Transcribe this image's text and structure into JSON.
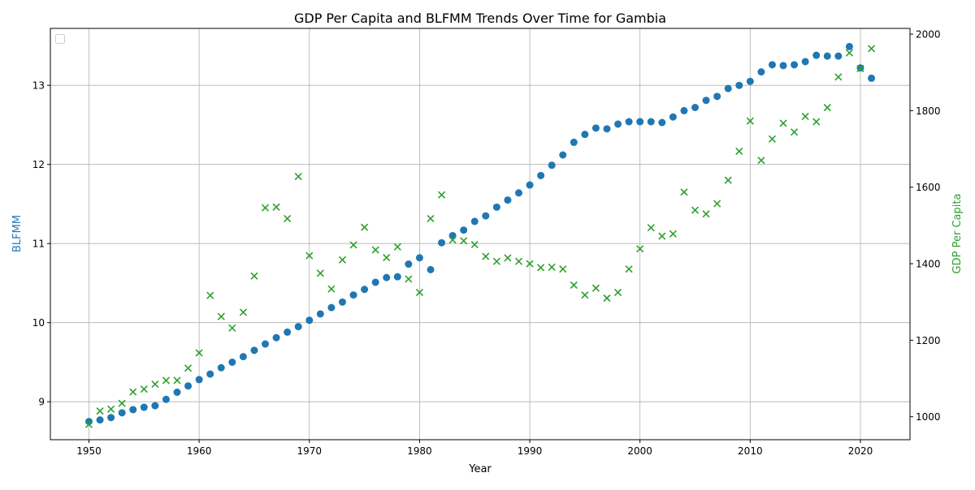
{
  "chart_data": {
    "type": "scatter",
    "title": "GDP Per Capita and BLFMM Trends Over Time for Gambia",
    "xlabel": "Year",
    "ylabel_left": "BLFMM",
    "ylabel_right": "GDP Per Capita",
    "x_ticks": [
      1950,
      1960,
      1970,
      1980,
      1990,
      2000,
      2010,
      2020
    ],
    "y_left_ticks": [
      9,
      10,
      11,
      12,
      13
    ],
    "y_right_ticks": [
      1000,
      1200,
      1400,
      1600,
      1800,
      2000
    ],
    "xlim": [
      1946.5,
      2024.5
    ],
    "ylim_left": [
      8.52,
      13.72
    ],
    "ylim_right": [
      940,
      2015
    ],
    "grid": true,
    "legend": "top-left (empty)",
    "colors": {
      "blfmm": "#1f77b4",
      "gdp": "#2ca02c",
      "grid": "#b0b0b0",
      "axis": "#000000"
    },
    "series": [
      {
        "marker": "circle",
        "axis": "left",
        "x": [
          1950,
          1951,
          1952,
          1953,
          1954,
          1955,
          1956,
          1957,
          1958,
          1959,
          1960,
          1961,
          1962,
          1963,
          1964,
          1965,
          1966,
          1967,
          1968,
          1969,
          1970,
          1971,
          1972,
          1973,
          1974,
          1975,
          1976,
          1977,
          1978,
          1979,
          1980,
          1981,
          1982,
          1983,
          1984,
          1985,
          1986,
          1987,
          1988,
          1989,
          1990,
          1991,
          1992,
          1993,
          1994,
          1995,
          1996,
          1997,
          1998,
          1999,
          2000,
          2001,
          2002,
          2003,
          2004,
          2005,
          2006,
          2007,
          2008,
          2009,
          2010,
          2011,
          2012,
          2013,
          2014,
          2015,
          2016,
          2017,
          2018,
          2019,
          2020,
          2021
        ],
        "values": [
          8.75,
          8.77,
          8.8,
          8.86,
          8.9,
          8.93,
          8.95,
          9.03,
          9.12,
          9.2,
          9.28,
          9.35,
          9.43,
          9.5,
          9.57,
          9.65,
          9.73,
          9.81,
          9.88,
          9.95,
          10.03,
          10.11,
          10.19,
          10.26,
          10.35,
          10.42,
          10.51,
          10.57,
          10.58,
          10.74,
          10.82,
          10.67,
          11.01,
          11.1,
          11.17,
          11.28,
          11.35,
          11.46,
          11.55,
          11.64,
          11.74,
          11.86,
          11.99,
          12.12,
          12.28,
          12.38,
          12.46,
          12.45,
          12.51,
          12.54,
          12.54,
          12.54,
          12.53,
          12.6,
          12.68,
          12.72,
          12.81,
          12.86,
          12.96,
          13.0,
          13.05,
          13.17,
          13.26,
          13.25,
          13.26,
          13.3,
          13.38,
          13.37,
          13.37,
          13.49,
          13.22,
          13.09
        ]
      },
      {
        "marker": "x",
        "axis": "right",
        "x": [
          1950,
          1951,
          1952,
          1953,
          1954,
          1955,
          1956,
          1957,
          1958,
          1959,
          1960,
          1961,
          1962,
          1963,
          1964,
          1965,
          1966,
          1967,
          1968,
          1969,
          1970,
          1971,
          1972,
          1973,
          1974,
          1975,
          1976,
          1977,
          1978,
          1979,
          1980,
          1981,
          1982,
          1983,
          1984,
          1985,
          1986,
          1987,
          1988,
          1989,
          1990,
          1991,
          1992,
          1993,
          1994,
          1995,
          1996,
          1997,
          1998,
          1999,
          2000,
          2001,
          2002,
          2003,
          2004,
          2005,
          2006,
          2007,
          2008,
          2009,
          2010,
          2011,
          2012,
          2013,
          2014,
          2015,
          2016,
          2017,
          2018,
          2019,
          2020,
          2021
        ],
        "values": [
          980,
          1015,
          1020,
          1035,
          1065,
          1072,
          1085,
          1095,
          1095,
          1127,
          1167,
          1317,
          1262,
          1232,
          1273,
          1368,
          1546,
          1548,
          1518,
          1628,
          1421,
          1375,
          1334,
          1410,
          1449,
          1495,
          1436,
          1416,
          1444,
          1360,
          1325,
          1518,
          1580,
          1462,
          1460,
          1450,
          1419,
          1406,
          1415,
          1406,
          1400,
          1390,
          1391,
          1386,
          1344,
          1318,
          1336,
          1310,
          1325,
          1386,
          1439,
          1494,
          1472,
          1478,
          1587,
          1540,
          1530,
          1557,
          1618,
          1694,
          1773,
          1670,
          1726,
          1767,
          1744,
          1785,
          1771,
          1808,
          1888,
          1951,
          1910,
          1962
        ]
      }
    ]
  }
}
